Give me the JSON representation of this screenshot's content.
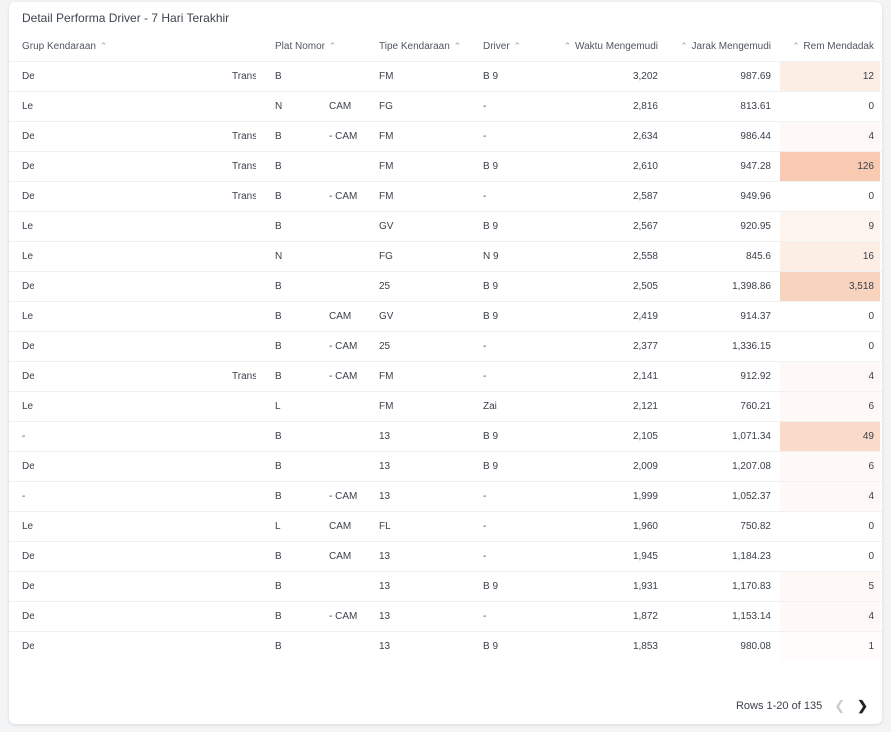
{
  "title": "Detail Performa Driver - 7 Hari Terakhir",
  "columns": {
    "grup": "Grup Kendaraan",
    "plat": "Plat Nomor",
    "tipe": "Tipe Kendaraan",
    "driver": "Driver",
    "waktu": "Waktu Mengemudi",
    "jarak": "Jarak Mengemudi",
    "rem": "Rem Mendadak"
  },
  "sort_icon": "sort-caret-up-icon",
  "heat_color": "#f2a77d",
  "rows": [
    {
      "grup": "De",
      "grup2": "Trans",
      "plat": "B",
      "plat2": "",
      "tipe": "FM",
      "driver": "B 9",
      "waktu": "3,202",
      "jarak": "987.69",
      "rem": "12",
      "rem_value": 12
    },
    {
      "grup": "Le",
      "grup2": "",
      "plat": "N",
      "plat2": "CAM",
      "tipe": "FG",
      "driver": "-",
      "waktu": "2,816",
      "jarak": "813.61",
      "rem": "0",
      "rem_value": 0
    },
    {
      "grup": "De",
      "grup2": "Trans",
      "plat": "B",
      "plat2": "- CAM",
      "tipe": "FM",
      "driver": "-",
      "waktu": "2,634",
      "jarak": "986.44",
      "rem": "4",
      "rem_value": 4
    },
    {
      "grup": "De",
      "grup2": "Trans",
      "plat": "B",
      "plat2": "",
      "tipe": "FM",
      "driver": "B 9",
      "waktu": "2,610",
      "jarak": "947.28",
      "rem": "126",
      "rem_value": 126
    },
    {
      "grup": "De",
      "grup2": "Trans",
      "plat": "B",
      "plat2": "- CAM",
      "tipe": "FM",
      "driver": "-",
      "waktu": "2,587",
      "jarak": "949.96",
      "rem": "0",
      "rem_value": 0
    },
    {
      "grup": "Le",
      "grup2": "",
      "plat": "B",
      "plat2": "",
      "tipe": "GV",
      "driver": "B 9",
      "waktu": "2,567",
      "jarak": "920.95",
      "rem": "9",
      "rem_value": 9
    },
    {
      "grup": "Le",
      "grup2": "",
      "plat": "N",
      "plat2": "",
      "tipe": "FG",
      "driver": "N 9",
      "waktu": "2,558",
      "jarak": "845.6",
      "rem": "16",
      "rem_value": 16
    },
    {
      "grup": "De",
      "grup2": "",
      "plat": "B",
      "plat2": "",
      "tipe": "25",
      "driver": "B 9",
      "waktu": "2,505",
      "jarak": "1,398.86",
      "rem": "3,518",
      "rem_value": 3518
    },
    {
      "grup": "Le",
      "grup2": "",
      "plat": "B",
      "plat2": "CAM",
      "tipe": "GV",
      "driver": "B 9",
      "waktu": "2,419",
      "jarak": "914.37",
      "rem": "0",
      "rem_value": 0
    },
    {
      "grup": "De",
      "grup2": "",
      "plat": "B",
      "plat2": "- CAM",
      "tipe": "25",
      "driver": "-",
      "waktu": "2,377",
      "jarak": "1,336.15",
      "rem": "0",
      "rem_value": 0
    },
    {
      "grup": "De",
      "grup2": "Trans",
      "plat": "B",
      "plat2": "- CAM",
      "tipe": "FM",
      "driver": "-",
      "waktu": "2,141",
      "jarak": "912.92",
      "rem": "4",
      "rem_value": 4
    },
    {
      "grup": "Le",
      "grup2": "",
      "plat": "L",
      "plat2": "",
      "tipe": "FM",
      "driver": "Zai",
      "waktu": "2,121",
      "jarak": "760.21",
      "rem": "6",
      "rem_value": 6
    },
    {
      "grup": "-",
      "grup2": "",
      "plat": "B",
      "plat2": "",
      "tipe": "13",
      "driver": "B 9",
      "waktu": "2,105",
      "jarak": "1,071.34",
      "rem": "49",
      "rem_value": 49
    },
    {
      "grup": "De",
      "grup2": "",
      "plat": "B",
      "plat2": "",
      "tipe": "13",
      "driver": "B 9",
      "waktu": "2,009",
      "jarak": "1,207.08",
      "rem": "6",
      "rem_value": 6
    },
    {
      "grup": "-",
      "grup2": "",
      "plat": "B",
      "plat2": "- CAM",
      "tipe": "13",
      "driver": "-",
      "waktu": "1,999",
      "jarak": "1,052.37",
      "rem": "4",
      "rem_value": 4
    },
    {
      "grup": "Le",
      "grup2": "",
      "plat": "L",
      "plat2": "CAM",
      "tipe": "FL",
      "driver": "-",
      "waktu": "1,960",
      "jarak": "750.82",
      "rem": "0",
      "rem_value": 0
    },
    {
      "grup": "De",
      "grup2": "",
      "plat": "B",
      "plat2": "CAM",
      "tipe": "13",
      "driver": "-",
      "waktu": "1,945",
      "jarak": "1,184.23",
      "rem": "0",
      "rem_value": 0
    },
    {
      "grup": "De",
      "grup2": "",
      "plat": "B",
      "plat2": "",
      "tipe": "13",
      "driver": "B 9",
      "waktu": "1,931",
      "jarak": "1,170.83",
      "rem": "5",
      "rem_value": 5
    },
    {
      "grup": "De",
      "grup2": "",
      "plat": "B",
      "plat2": "- CAM",
      "tipe": "13",
      "driver": "-",
      "waktu": "1,872",
      "jarak": "1,153.14",
      "rem": "4",
      "rem_value": 4
    },
    {
      "grup": "De",
      "grup2": "",
      "plat": "B",
      "plat2": "",
      "tipe": "13",
      "driver": "B 9",
      "waktu": "1,853",
      "jarak": "980.08",
      "rem": "1",
      "rem_value": 1
    }
  ],
  "pagination": {
    "label": "Rows 1-20 of 135",
    "prev_icon": "chevron-left-icon",
    "next_icon": "chevron-right-icon"
  }
}
